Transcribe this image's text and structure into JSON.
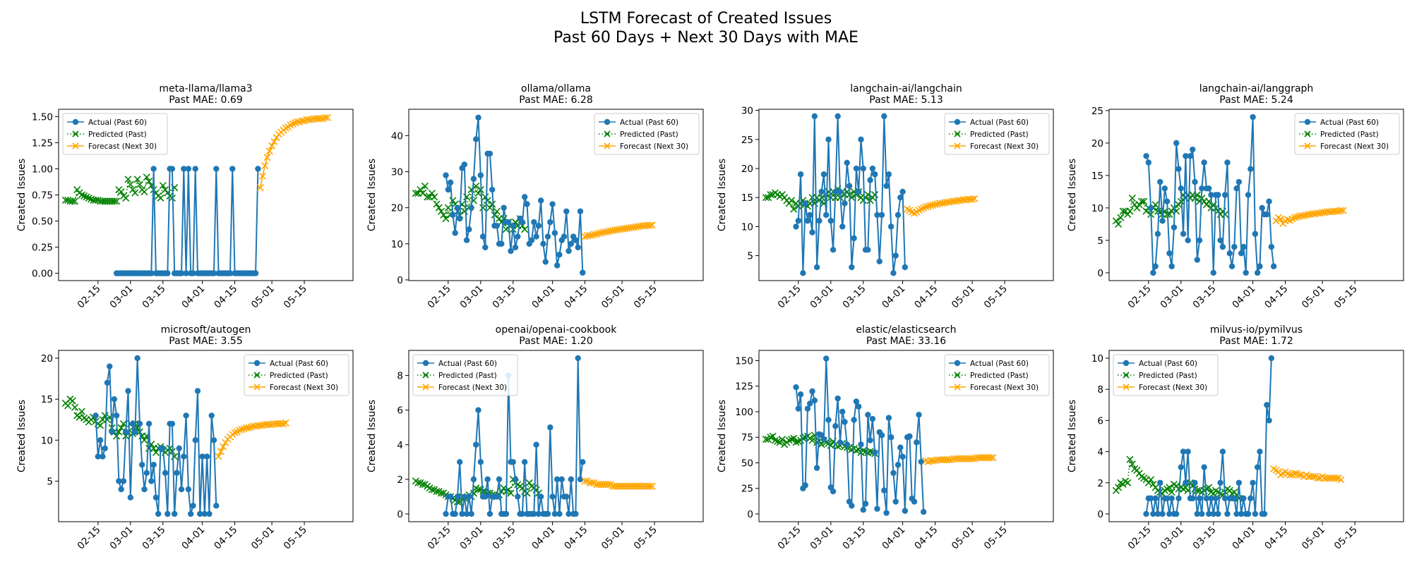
{
  "figure": {
    "title_line1": "LSTM Forecast of Created Issues",
    "title_line2": "Past 60 Days + Next 30 Days with MAE"
  },
  "colors": {
    "actual": "#1f77b4",
    "predicted": "#008000",
    "forecast": "#ffa500",
    "axis": "#000000"
  },
  "legend_labels": [
    "Actual (Past 60)",
    "Predicted (Past)",
    "Forecast (Next 30)"
  ],
  "x_ticks": [
    {
      "day": 14,
      "label": "02-15"
    },
    {
      "day": 28,
      "label": "03-01"
    },
    {
      "day": 42,
      "label": "03-15"
    },
    {
      "day": 59,
      "label": "04-01"
    },
    {
      "day": 73,
      "label": "04-15"
    },
    {
      "day": 89,
      "label": "05-01"
    },
    {
      "day": 103,
      "label": "05-15"
    }
  ],
  "chart_data": [
    {
      "type": "line",
      "repo": "meta-llama/llama3",
      "mae_label": "Past MAE: 0.69",
      "ylabel": "Created Issues",
      "ylim": [
        -0.07,
        1.57
      ],
      "yticks": [
        0,
        0.25,
        0.5,
        0.75,
        1.0,
        1.25,
        1.5
      ],
      "ytick_labels": [
        "0.00",
        "0.25",
        "0.50",
        "0.75",
        "1.00",
        "1.25",
        "1.50"
      ],
      "legend_pos": "top-left",
      "actual": [
        0,
        0,
        0,
        0,
        0,
        0,
        0,
        0,
        0,
        0,
        0,
        0,
        0,
        0,
        0,
        0,
        1,
        0,
        0,
        0,
        0,
        0,
        0,
        1,
        1,
        0,
        0,
        0,
        0,
        1,
        0,
        1,
        0,
        0,
        1,
        0,
        0,
        0,
        0,
        0,
        0,
        0,
        0,
        1,
        0,
        0,
        0,
        0,
        0,
        0,
        1,
        0,
        0,
        0,
        0,
        0,
        0,
        0,
        0,
        0,
        0,
        1
      ],
      "predicted": [
        0.7,
        0.7,
        0.69,
        0.69,
        0.69,
        0.8,
        0.77,
        0.75,
        0.74,
        0.73,
        0.72,
        0.71,
        0.7,
        0.7,
        0.7,
        0.69,
        0.69,
        0.69,
        0.69,
        0.69,
        0.69,
        0.69,
        0.69,
        0.8,
        0.78,
        0.74,
        0.72,
        0.9,
        0.85,
        0.8,
        0.77,
        0.9,
        0.85,
        0.8,
        0.78,
        0.92,
        0.88,
        0.84,
        0.8,
        0.77,
        0.74,
        0.72,
        0.84,
        0.8,
        0.77,
        0.74,
        0.72,
        0.82
      ],
      "forecast": [
        0.82,
        0.93,
        1.03,
        1.11,
        1.17,
        1.22,
        1.26,
        1.3,
        1.33,
        1.35,
        1.37,
        1.39,
        1.4,
        1.42,
        1.43,
        1.44,
        1.45,
        1.45,
        1.46,
        1.46,
        1.47,
        1.47,
        1.47,
        1.48,
        1.48,
        1.48,
        1.48,
        1.48,
        1.49,
        1.49
      ]
    },
    {
      "type": "line",
      "repo": "ollama/ollama",
      "mae_label": "Past MAE: 6.28",
      "ylabel": "Created Issues",
      "ylim": [
        -0.2,
        47.3
      ],
      "yticks": [
        0,
        10,
        20,
        30,
        40
      ],
      "ytick_labels": [
        "0",
        "10",
        "20",
        "30",
        "40"
      ],
      "legend_pos": "top-right",
      "actual": [
        29,
        25,
        27,
        18,
        13,
        20,
        17,
        31,
        32,
        11,
        14,
        20,
        28,
        39,
        45,
        29,
        12,
        9,
        35,
        35,
        25,
        15,
        15,
        10,
        10,
        20,
        16,
        16,
        8,
        15,
        9,
        12,
        17,
        16,
        23,
        21,
        10,
        11,
        16,
        12,
        15,
        22,
        10,
        5,
        12,
        16,
        21,
        13,
        4,
        7,
        11,
        12,
        19,
        8,
        10,
        12,
        11,
        9,
        19,
        2
      ],
      "predicted": [
        24,
        24,
        25,
        24,
        26,
        23,
        23,
        24,
        23,
        21,
        20,
        19,
        18,
        17,
        20,
        18,
        22,
        21,
        19,
        18,
        21,
        19,
        23,
        20,
        25,
        22,
        26,
        24,
        25,
        20,
        23,
        22,
        20,
        21,
        18,
        19,
        17,
        16,
        17,
        14,
        16,
        15,
        14,
        16,
        15,
        17,
        15,
        14
      ],
      "forecast": [
        12.0,
        12.2,
        12.3,
        12.4,
        12.6,
        12.7,
        12.9,
        13.0,
        13.2,
        13.3,
        13.4,
        13.6,
        13.7,
        13.8,
        13.9,
        14.0,
        14.1,
        14.2,
        14.3,
        14.4,
        14.5,
        14.6,
        14.7,
        14.8,
        14.9,
        15.0,
        15.0,
        15.1,
        15.1,
        15.2
      ]
    },
    {
      "type": "line",
      "repo": "langchain-ai/langchain",
      "mae_label": "Past MAE: 5.13",
      "ylabel": "Created Issues",
      "ylim": [
        0.7,
        30.2
      ],
      "yticks": [
        5,
        10,
        15,
        20,
        25,
        30
      ],
      "ytick_labels": [
        "5",
        "10",
        "15",
        "20",
        "25",
        "30"
      ],
      "legend_pos": "top-right",
      "actual": [
        10,
        11,
        19,
        2,
        14,
        11,
        12,
        9,
        29,
        3,
        11,
        16,
        19,
        12,
        25,
        11,
        6,
        16,
        29,
        16,
        10,
        14,
        21,
        17,
        3,
        8,
        20,
        16,
        25,
        20,
        6,
        6,
        18,
        20,
        19,
        12,
        4,
        12,
        29,
        17,
        19,
        10,
        2,
        5,
        12,
        15,
        16,
        3
      ],
      "predicted": [
        15,
        15,
        15.5,
        15.5,
        15.8,
        15.5,
        15.2,
        15.5,
        15,
        14.5,
        14,
        14.5,
        13,
        14,
        13.5,
        14,
        14.5,
        13.8,
        13.5,
        14,
        15,
        14,
        15,
        14.5,
        15,
        14,
        15.5,
        16,
        15,
        16,
        15,
        16.5,
        15,
        16,
        15.5,
        16,
        15.5,
        15,
        16,
        15.5,
        16,
        15,
        14.5,
        15,
        15.5,
        14.5,
        15,
        15.5
      ],
      "forecast": [
        13.0,
        12.8,
        12.5,
        12.3,
        12.5,
        12.8,
        13.0,
        13.2,
        13.4,
        13.5,
        13.6,
        13.7,
        13.8,
        13.9,
        14.0,
        14.0,
        14.1,
        14.2,
        14.2,
        14.3,
        14.4,
        14.4,
        14.5,
        14.5,
        14.6,
        14.6,
        14.7,
        14.7,
        14.7,
        14.8
      ]
    },
    {
      "type": "line",
      "repo": "langchain-ai/langgraph",
      "mae_label": "Past MAE: 5.24",
      "ylabel": "Created Issues",
      "ylim": [
        -1.2,
        25.2
      ],
      "yticks": [
        0,
        5,
        10,
        15,
        20,
        25
      ],
      "ytick_labels": [
        "0",
        "5",
        "10",
        "15",
        "20",
        "25"
      ],
      "legend_pos": "top-right",
      "actual": [
        18,
        17,
        10,
        0,
        1,
        6,
        14,
        8,
        13,
        11,
        3,
        1,
        7,
        20,
        16,
        13,
        6,
        18,
        5,
        18,
        19,
        14,
        2,
        5,
        13,
        17,
        13,
        13,
        12,
        0,
        12,
        12,
        5,
        4,
        12,
        17,
        3,
        1,
        4,
        13,
        14,
        3,
        4,
        0,
        12,
        16,
        24,
        6,
        0,
        1,
        10,
        9,
        9,
        11,
        4,
        1
      ],
      "predicted": [
        8,
        7.5,
        8.5,
        9.5,
        9.5,
        9,
        9.5,
        11.5,
        10.5,
        10,
        10.5,
        11,
        11,
        9.5,
        10,
        9,
        10,
        10.5,
        9.5,
        9.5,
        9,
        9.5,
        9,
        9,
        9.5,
        10,
        9.5,
        10.5,
        11,
        12,
        11.5,
        12,
        11.5,
        12,
        11.5,
        12,
        11,
        11.5,
        11,
        10.5,
        11,
        10,
        10.5,
        10,
        9.5,
        9,
        9.5,
        9
      ],
      "forecast": [
        8.0,
        8.5,
        8.3,
        7.6,
        8.0,
        8.2,
        8.1,
        8.3,
        8.5,
        8.6,
        8.7,
        8.8,
        8.8,
        8.9,
        9.0,
        9.0,
        9.1,
        9.1,
        9.2,
        9.2,
        9.3,
        9.3,
        9.4,
        9.4,
        9.4,
        9.5,
        9.5,
        9.5,
        9.6,
        9.6
      ]
    },
    {
      "type": "line",
      "repo": "microsoft/autogen",
      "mae_label": "Past MAE: 3.55",
      "ylabel": "Created Issues",
      "ylim": [
        0.05,
        20.95
      ],
      "yticks": [
        5,
        10,
        15,
        20
      ],
      "ytick_labels": [
        "5",
        "10",
        "15",
        "20"
      ],
      "legend_pos": "top-right",
      "actual": [
        13,
        8,
        10,
        8,
        9,
        17,
        19,
        11,
        15,
        13,
        5,
        4,
        5,
        11,
        16,
        3,
        12,
        11,
        20,
        12,
        7,
        4,
        6,
        12,
        5,
        7,
        3,
        1,
        9,
        9,
        6,
        1,
        12,
        12,
        1,
        6,
        9,
        4,
        8,
        13,
        4,
        1,
        2,
        10,
        16,
        1,
        8,
        1,
        8,
        1,
        13,
        10,
        2
      ],
      "predicted": [
        14.5,
        14.2,
        15,
        14.8,
        14,
        13,
        12.8,
        13.5,
        12.7,
        12.5,
        12.2,
        12.5,
        12.8,
        12.3,
        12,
        11.8,
        12.5,
        13,
        12.5,
        12.8,
        11.5,
        11,
        10.5,
        11,
        11.5,
        12,
        10.5,
        11,
        12,
        10.8,
        12,
        11.5,
        11,
        10.5,
        10,
        10.5,
        9,
        9.5,
        9,
        8.5,
        9,
        9.2,
        8.8,
        8.5,
        8.8,
        9,
        8.6,
        8
      ],
      "forecast": [
        8.0,
        8.6,
        9.2,
        9.7,
        10.1,
        10.4,
        10.7,
        10.9,
        11.0,
        11.2,
        11.3,
        11.4,
        11.5,
        11.5,
        11.6,
        11.7,
        11.7,
        11.8,
        11.8,
        11.8,
        11.9,
        11.9,
        11.9,
        11.9,
        12.0,
        12.0,
        12.0,
        12.0,
        12.0,
        12.1
      ]
    },
    {
      "type": "line",
      "repo": "openai/openai-cookbook",
      "mae_label": "Past MAE: 1.20",
      "ylabel": "Created Issues",
      "ylim": [
        -0.45,
        9.45
      ],
      "yticks": [
        0,
        2,
        4,
        6,
        8
      ],
      "ytick_labels": [
        "0",
        "2",
        "4",
        "6",
        "8"
      ],
      "legend_pos": "top-left",
      "actual": [
        0,
        1,
        1,
        0,
        0,
        1,
        3,
        0,
        1,
        0,
        1,
        0,
        2,
        4,
        6,
        3,
        1,
        1,
        2,
        0,
        1,
        1,
        1,
        2,
        0,
        0,
        0,
        8,
        3,
        3,
        2,
        1,
        0,
        0,
        3,
        0,
        0,
        0,
        0,
        4,
        0,
        1,
        0,
        0,
        0,
        5,
        1,
        0,
        2,
        0,
        2,
        1,
        1,
        0,
        2,
        0,
        0,
        9,
        2,
        3
      ],
      "predicted": [
        1.9,
        1.8,
        1.8,
        1.7,
        1.7,
        1.6,
        1.5,
        1.4,
        1.4,
        1.3,
        1.3,
        1.2,
        1.2,
        1.1,
        1.0,
        1.0,
        0.9,
        0.8,
        0.7,
        0.7,
        1.0,
        0.9,
        0.9,
        1.1,
        1.0,
        1.2,
        1.5,
        1.4,
        1.4,
        1.3,
        1.3,
        1.2,
        1.2,
        1.1,
        1.1,
        1.0,
        1.1,
        1.3,
        1.5,
        1.3,
        1.4,
        1.2,
        2.0,
        1.8,
        1.7,
        1.6,
        1.5,
        1.3,
        1.2,
        1.8,
        1.6,
        1.5,
        1.4,
        1.2
      ],
      "forecast": [
        1.9,
        1.9,
        1.8,
        1.8,
        1.8,
        1.7,
        1.7,
        1.7,
        1.7,
        1.7,
        1.7,
        1.7,
        1.6,
        1.6,
        1.6,
        1.6,
        1.6,
        1.6,
        1.6,
        1.6,
        1.6,
        1.6,
        1.6,
        1.6,
        1.6,
        1.6,
        1.6,
        1.6,
        1.6,
        1.6
      ]
    },
    {
      "type": "line",
      "repo": "elastic/elasticsearch",
      "mae_label": "Past MAE: 33.16",
      "ylabel": "Created Issues",
      "ylim": [
        -7.6,
        160.0
      ],
      "yticks": [
        0,
        25,
        50,
        75,
        100,
        125,
        150
      ],
      "ytick_labels": [
        "0",
        "25",
        "50",
        "75",
        "100",
        "125",
        "150"
      ],
      "legend_pos": "top-right",
      "actual": [
        124,
        103,
        117,
        25,
        28,
        103,
        108,
        120,
        111,
        45,
        78,
        77,
        73,
        152,
        92,
        26,
        22,
        86,
        113,
        70,
        100,
        90,
        68,
        12,
        8,
        92,
        110,
        105,
        68,
        4,
        10,
        97,
        72,
        93,
        60,
        5,
        80,
        77,
        23,
        1,
        94,
        75,
        40,
        12,
        48,
        65,
        56,
        3,
        75,
        76,
        15,
        12,
        70,
        97,
        51,
        2
      ],
      "predicted": [
        73,
        73,
        75,
        76,
        72,
        71,
        70,
        73,
        68,
        70,
        72,
        73,
        74,
        70,
        71,
        72,
        74,
        75,
        76,
        74,
        72,
        77,
        70,
        71,
        68,
        72,
        70,
        69,
        67,
        71,
        68,
        66,
        67,
        69,
        66,
        65,
        65,
        63,
        64,
        62,
        63,
        60,
        62,
        61,
        60,
        61,
        60,
        59
      ],
      "forecast": [
        52,
        51,
        52,
        52,
        52,
        53,
        53,
        53,
        53,
        53,
        53,
        53,
        54,
        54,
        54,
        54,
        54,
        54,
        54,
        54,
        54,
        54,
        55,
        55,
        55,
        55,
        55,
        55,
        55,
        55
      ]
    },
    {
      "type": "line",
      "repo": "milvus-io/pymilvus",
      "mae_label": "Past MAE: 1.72",
      "ylabel": "Created Issues",
      "ylim": [
        -0.5,
        10.5
      ],
      "yticks": [
        0,
        2,
        4,
        6,
        8,
        10
      ],
      "ytick_labels": [
        "0",
        "2",
        "4",
        "6",
        "8",
        "10"
      ],
      "legend_pos": "top-left",
      "actual": [
        0,
        1,
        1,
        0,
        1,
        0,
        2,
        0,
        1,
        1,
        0,
        1,
        0,
        0,
        1,
        3,
        4,
        2,
        4,
        1,
        1,
        2,
        0,
        1,
        0,
        3,
        1,
        0,
        1,
        0,
        1,
        0,
        2,
        4,
        1,
        0,
        1,
        1,
        1,
        0,
        2,
        0,
        1,
        0,
        0,
        1,
        2,
        0,
        3,
        4,
        0,
        0,
        7,
        6,
        10
      ],
      "predicted": [
        1.5,
        1.7,
        2.0,
        1.9,
        2.1,
        2.0,
        3.5,
        3.2,
        2.9,
        2.8,
        2.6,
        2.4,
        2.3,
        2.2,
        2.0,
        2.2,
        1.9,
        1.7,
        1.5,
        1.4,
        1.3,
        1.5,
        1.6,
        1.7,
        1.4,
        1.9,
        1.8,
        1.6,
        1.7,
        1.6,
        1.7,
        1.5,
        2.0,
        1.8,
        1.6,
        1.5,
        1.5,
        1.4,
        1.5,
        1.6,
        1.7,
        1.4,
        1.3,
        1.5,
        1.4,
        1.3,
        1.2,
        1.4,
        1.6,
        1.5,
        1.3,
        1.4,
        1.2,
        1.0
      ],
      "forecast": [
        2.9,
        2.8,
        2.7,
        2.5,
        2.6,
        2.7,
        2.6,
        2.5,
        2.5,
        2.6,
        2.6,
        2.5,
        2.5,
        2.4,
        2.5,
        2.4,
        2.4,
        2.4,
        2.4,
        2.3,
        2.3,
        2.4,
        2.3,
        2.3,
        2.3,
        2.3,
        2.3,
        2.3,
        2.3,
        2.2
      ]
    }
  ]
}
